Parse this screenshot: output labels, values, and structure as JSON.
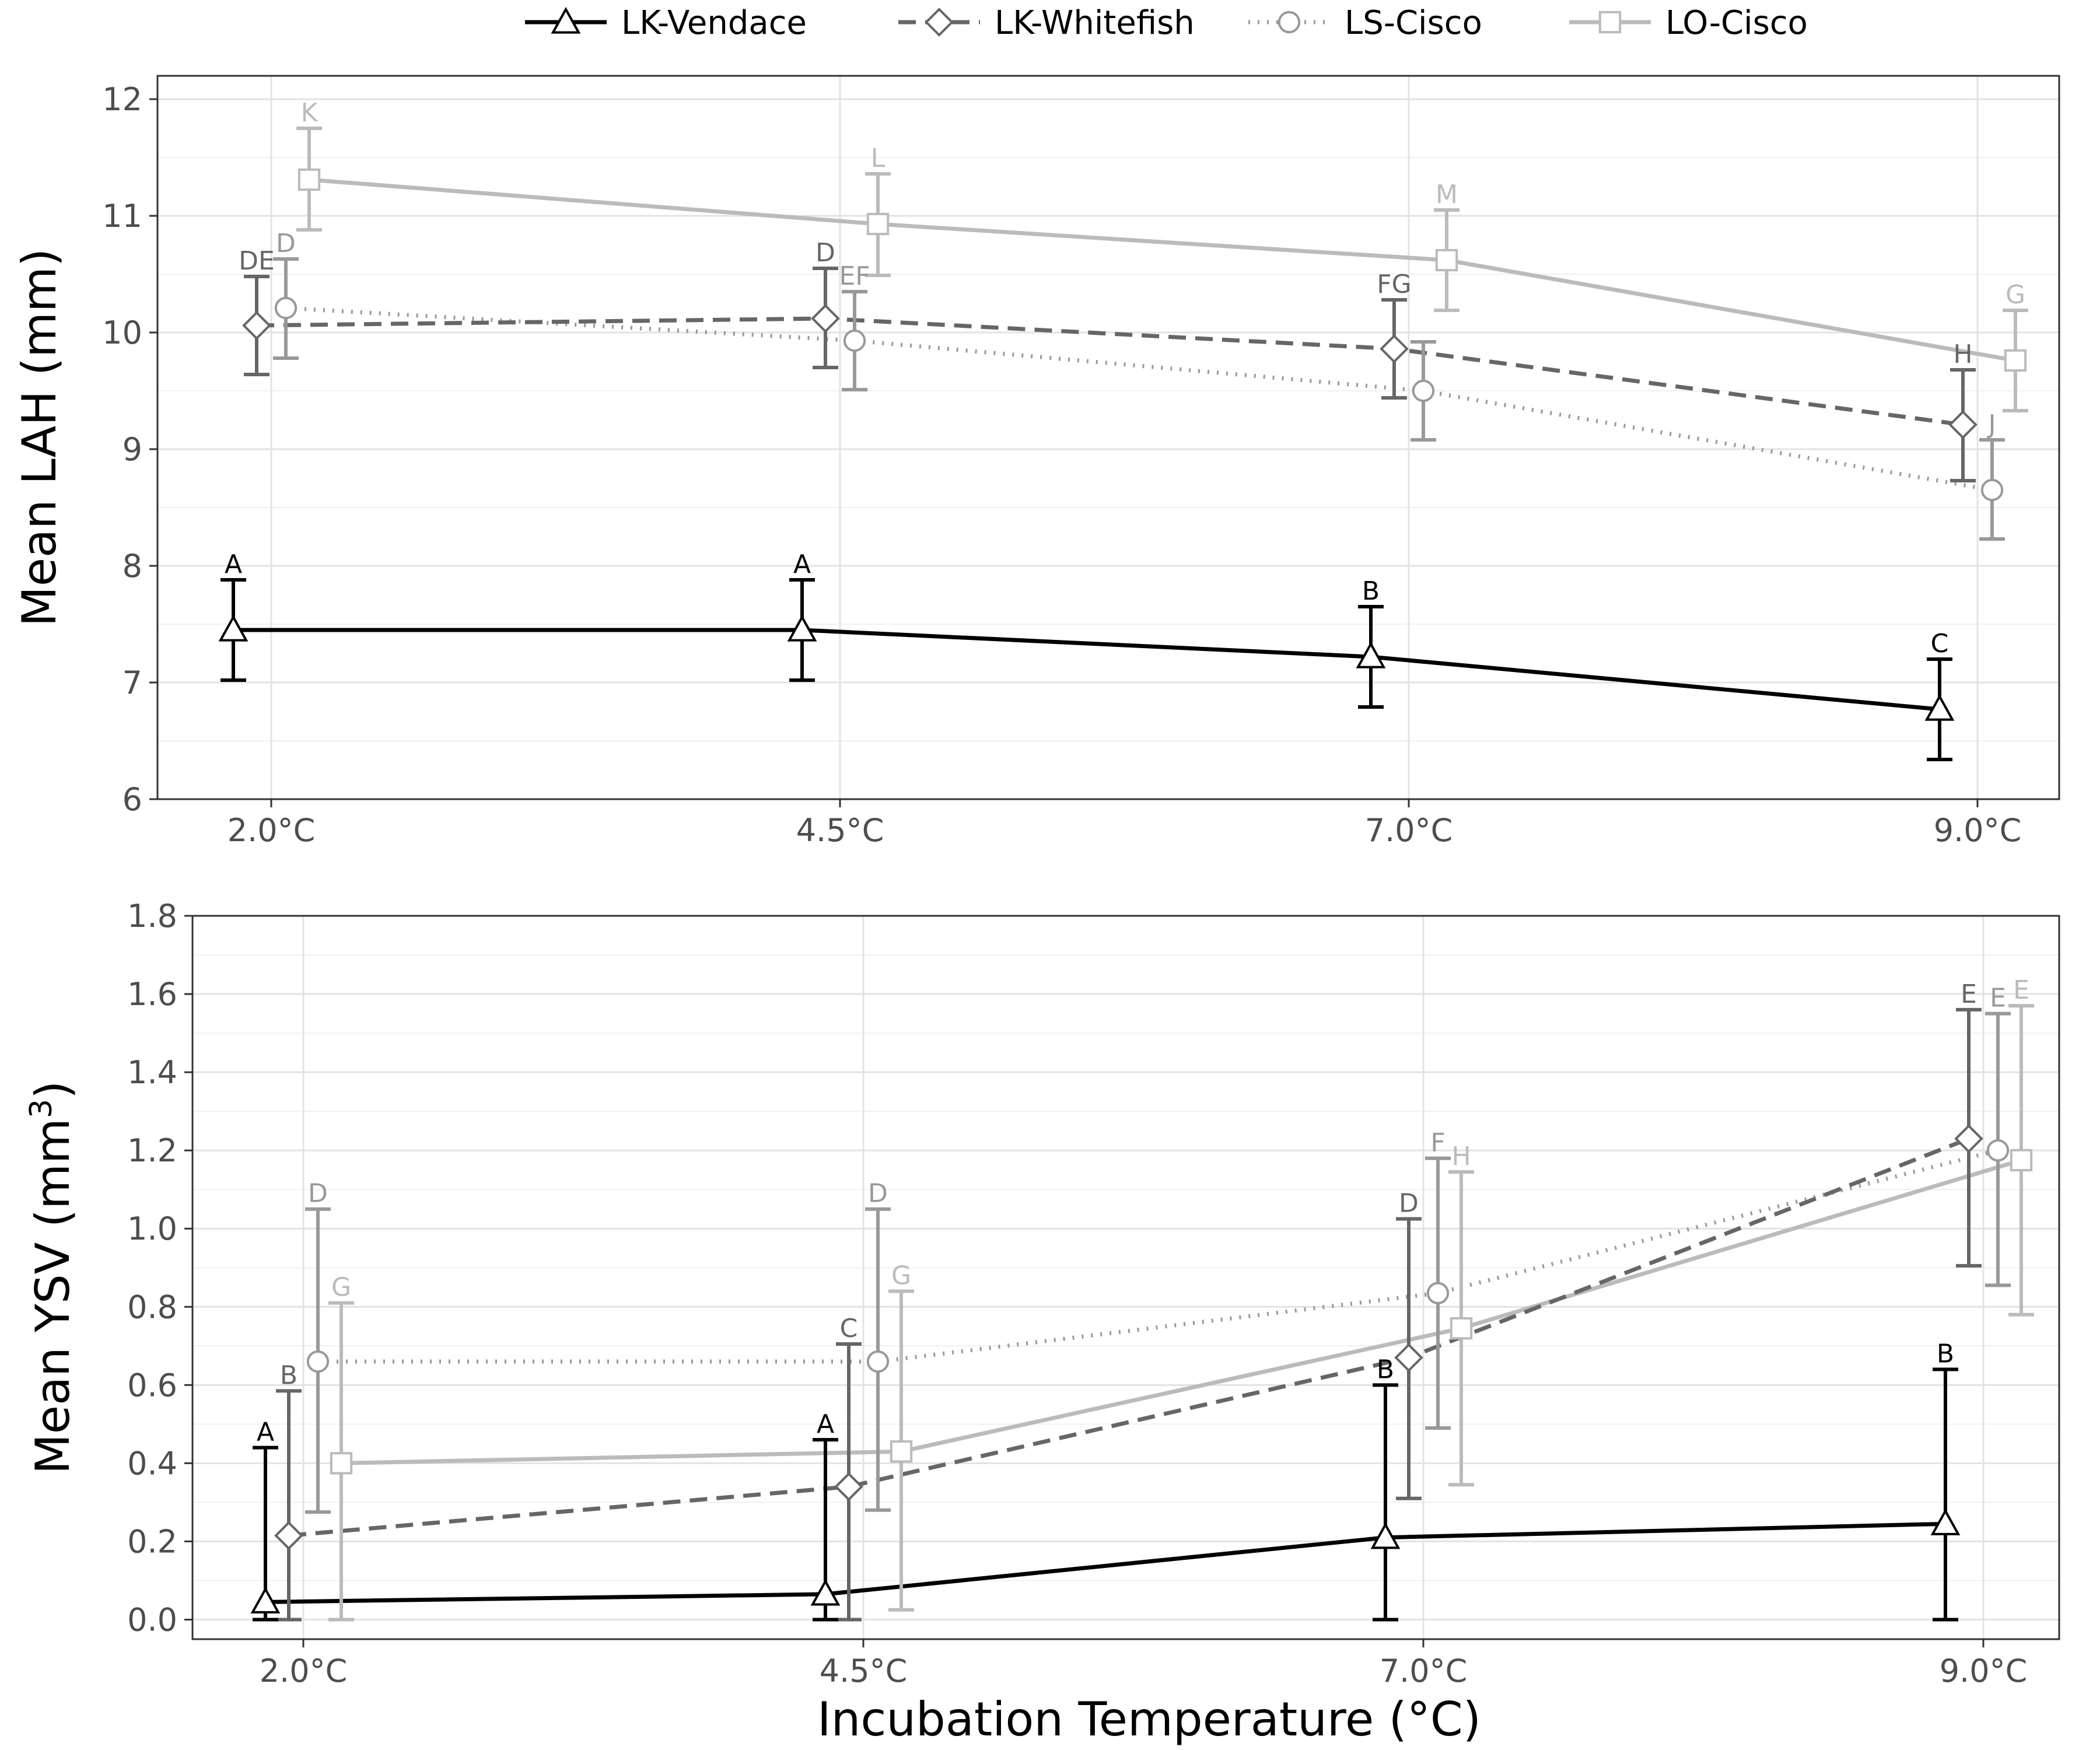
{
  "legend": {
    "items": [
      {
        "label": "LK-Vendace",
        "series": "vendace"
      },
      {
        "label": "LK-Whitefish",
        "series": "whitefish"
      },
      {
        "label": "LS-Cisco",
        "series": "lscisco"
      },
      {
        "label": "LO-Cisco",
        "series": "locisco"
      }
    ]
  },
  "series_styles": {
    "vendace": {
      "color": "#000000",
      "dash": "none",
      "marker": "triangle"
    },
    "whitefish": {
      "color": "#666666",
      "dash": "30,16",
      "marker": "diamond"
    },
    "lscisco": {
      "color": "#999999",
      "dash": "3,13",
      "marker": "circle"
    },
    "locisco": {
      "color": "#bbbbbb",
      "dash": "none",
      "marker": "square"
    }
  },
  "xlabel": "Incubation Temperature (°C)",
  "chart_data": [
    {
      "type": "line",
      "ylabel": "Mean LAH (mm)",
      "categories": [
        "2.0°C",
        "4.5°C",
        "7.0°C",
        "9.0°C"
      ],
      "ylim": [
        6,
        12.2
      ],
      "yticks": [
        6,
        7,
        8,
        9,
        10,
        11,
        12
      ],
      "ytick_labels": [
        "6",
        "7",
        "8",
        "9",
        "10",
        "11",
        "12"
      ],
      "grid": true,
      "legend_position": "top",
      "series": [
        {
          "name": "LK-Vendace",
          "key": "vendace",
          "values": [
            7.45,
            7.45,
            7.22,
            6.77
          ],
          "lower": [
            7.02,
            7.02,
            6.79,
            6.34
          ],
          "upper": [
            7.88,
            7.88,
            7.65,
            7.2
          ],
          "letters": [
            "A",
            "A",
            "B",
            "C"
          ]
        },
        {
          "name": "LK-Whitefish",
          "key": "whitefish",
          "values": [
            10.06,
            10.12,
            9.86,
            9.21
          ],
          "lower": [
            9.64,
            9.7,
            9.44,
            8.73
          ],
          "upper": [
            10.48,
            10.55,
            10.28,
            9.68
          ],
          "letters": [
            "DE",
            "D",
            "FG",
            "H"
          ]
        },
        {
          "name": "LS-Cisco",
          "key": "lscisco",
          "values": [
            10.21,
            9.93,
            9.5,
            8.65
          ],
          "lower": [
            9.78,
            9.51,
            9.08,
            8.23
          ],
          "upper": [
            10.63,
            10.35,
            9.92,
            9.08
          ],
          "letters": [
            "D",
            "EF",
            "",
            "J"
          ]
        },
        {
          "name": "LO-Cisco",
          "key": "locisco",
          "values": [
            11.31,
            10.93,
            10.62,
            9.76
          ],
          "lower": [
            10.88,
            10.49,
            10.19,
            9.33
          ],
          "upper": [
            11.75,
            11.36,
            11.05,
            10.19
          ],
          "letters": [
            "K",
            "L",
            "M",
            "G"
          ]
        }
      ]
    },
    {
      "type": "line",
      "ylabel": "Mean YSV (mm",
      "ylabel_sup": "3",
      "ylabel_suffix": ")",
      "categories": [
        "2.0°C",
        "4.5°C",
        "7.0°C",
        "9.0°C"
      ],
      "ylim": [
        -0.05,
        1.8
      ],
      "yticks": [
        0,
        0.2,
        0.4,
        0.6,
        0.8,
        1.0,
        1.2,
        1.4,
        1.6,
        1.8
      ],
      "ytick_labels": [
        "0.0",
        "0.2",
        "0.4",
        "0.6",
        "0.8",
        "1.0",
        "1.2",
        "1.4",
        "1.6",
        "1.8"
      ],
      "grid": true,
      "series": [
        {
          "name": "LK-Vendace",
          "key": "vendace",
          "values": [
            0.045,
            0.065,
            0.21,
            0.245
          ],
          "lower": [
            0,
            0,
            0,
            0
          ],
          "upper": [
            0.44,
            0.46,
            0.6,
            0.64
          ],
          "letters": [
            "A",
            "A",
            "B",
            "B"
          ]
        },
        {
          "name": "LK-Whitefish",
          "key": "whitefish",
          "values": [
            0.215,
            0.34,
            0.67,
            1.23
          ],
          "lower": [
            0,
            0,
            0.31,
            0.905
          ],
          "upper": [
            0.585,
            0.705,
            1.025,
            1.56
          ],
          "letters": [
            "B",
            "C",
            "D",
            "E"
          ]
        },
        {
          "name": "LS-Cisco",
          "key": "lscisco",
          "values": [
            0.66,
            0.66,
            0.835,
            1.2
          ],
          "lower": [
            0.275,
            0.28,
            0.49,
            0.855
          ],
          "upper": [
            1.05,
            1.05,
            1.18,
            1.55
          ],
          "letters": [
            "D",
            "D",
            "F",
            "E"
          ]
        },
        {
          "name": "LO-Cisco",
          "key": "locisco",
          "values": [
            0.4,
            0.43,
            0.745,
            1.175
          ],
          "lower": [
            0,
            0.025,
            0.345,
            0.78
          ],
          "upper": [
            0.81,
            0.84,
            1.145,
            1.57
          ],
          "letters": [
            "G",
            "G",
            "H",
            "E"
          ]
        }
      ]
    }
  ]
}
